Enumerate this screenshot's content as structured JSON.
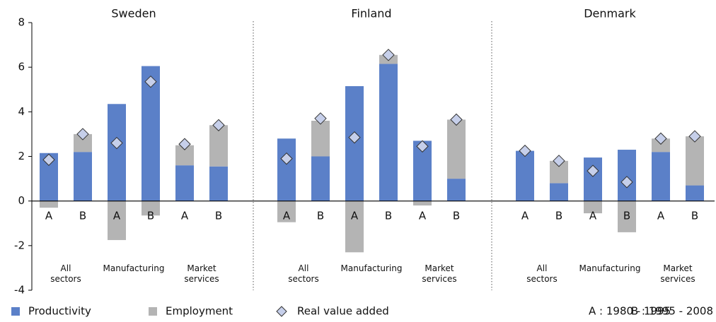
{
  "chart_data": {
    "type": "stacked-bar",
    "panels": [
      {
        "title": "Sweden",
        "groups": [
          [
            "All",
            "sectors"
          ],
          [
            "Manufacturing"
          ],
          [
            "Market",
            "services"
          ]
        ]
      },
      {
        "title": "Finland",
        "groups": [
          [
            "All",
            "sectors"
          ],
          [
            "Manufacturing"
          ],
          [
            "Market",
            "services"
          ]
        ]
      },
      {
        "title": "Denmark",
        "groups": [
          [
            "All",
            "sectors"
          ],
          [
            "Manufacturing"
          ],
          [
            "Market",
            "services"
          ]
        ]
      }
    ],
    "categories": [
      "A",
      "B",
      "A",
      "B",
      "A",
      "B",
      "A",
      "B",
      "A",
      "B",
      "A",
      "B",
      "A",
      "B",
      "A",
      "B",
      "A",
      "B"
    ],
    "series": [
      {
        "name": "Productivity",
        "color": "#5b80c8",
        "kind": "bar",
        "values": [
          2.15,
          2.2,
          4.35,
          6.05,
          1.6,
          1.55,
          2.8,
          2.0,
          5.15,
          6.15,
          2.7,
          1.0,
          2.25,
          0.8,
          1.95,
          2.3,
          2.2,
          0.7
        ]
      },
      {
        "name": "Employment",
        "color": "#b4b4b4",
        "kind": "bar",
        "values": [
          -0.3,
          0.8,
          -1.75,
          -0.65,
          0.9,
          1.85,
          -0.95,
          1.6,
          -2.3,
          0.4,
          -0.2,
          2.65,
          0,
          1.0,
          -0.55,
          -1.4,
          0.6,
          2.2
        ]
      },
      {
        "name": "Real value added",
        "color": "#c6cfea",
        "kind": "marker",
        "values": [
          1.85,
          3.0,
          2.6,
          5.35,
          2.55,
          3.4,
          1.9,
          3.7,
          2.85,
          6.55,
          2.45,
          3.65,
          2.25,
          1.8,
          1.35,
          0.85,
          2.8,
          2.9
        ]
      }
    ],
    "notes": [
      "A : 1980 - 1995",
      "B : 1995 - 2008"
    ],
    "ylim": [
      -4,
      8
    ],
    "yticks": [
      -4,
      -2,
      0,
      2,
      4,
      6,
      8
    ]
  }
}
